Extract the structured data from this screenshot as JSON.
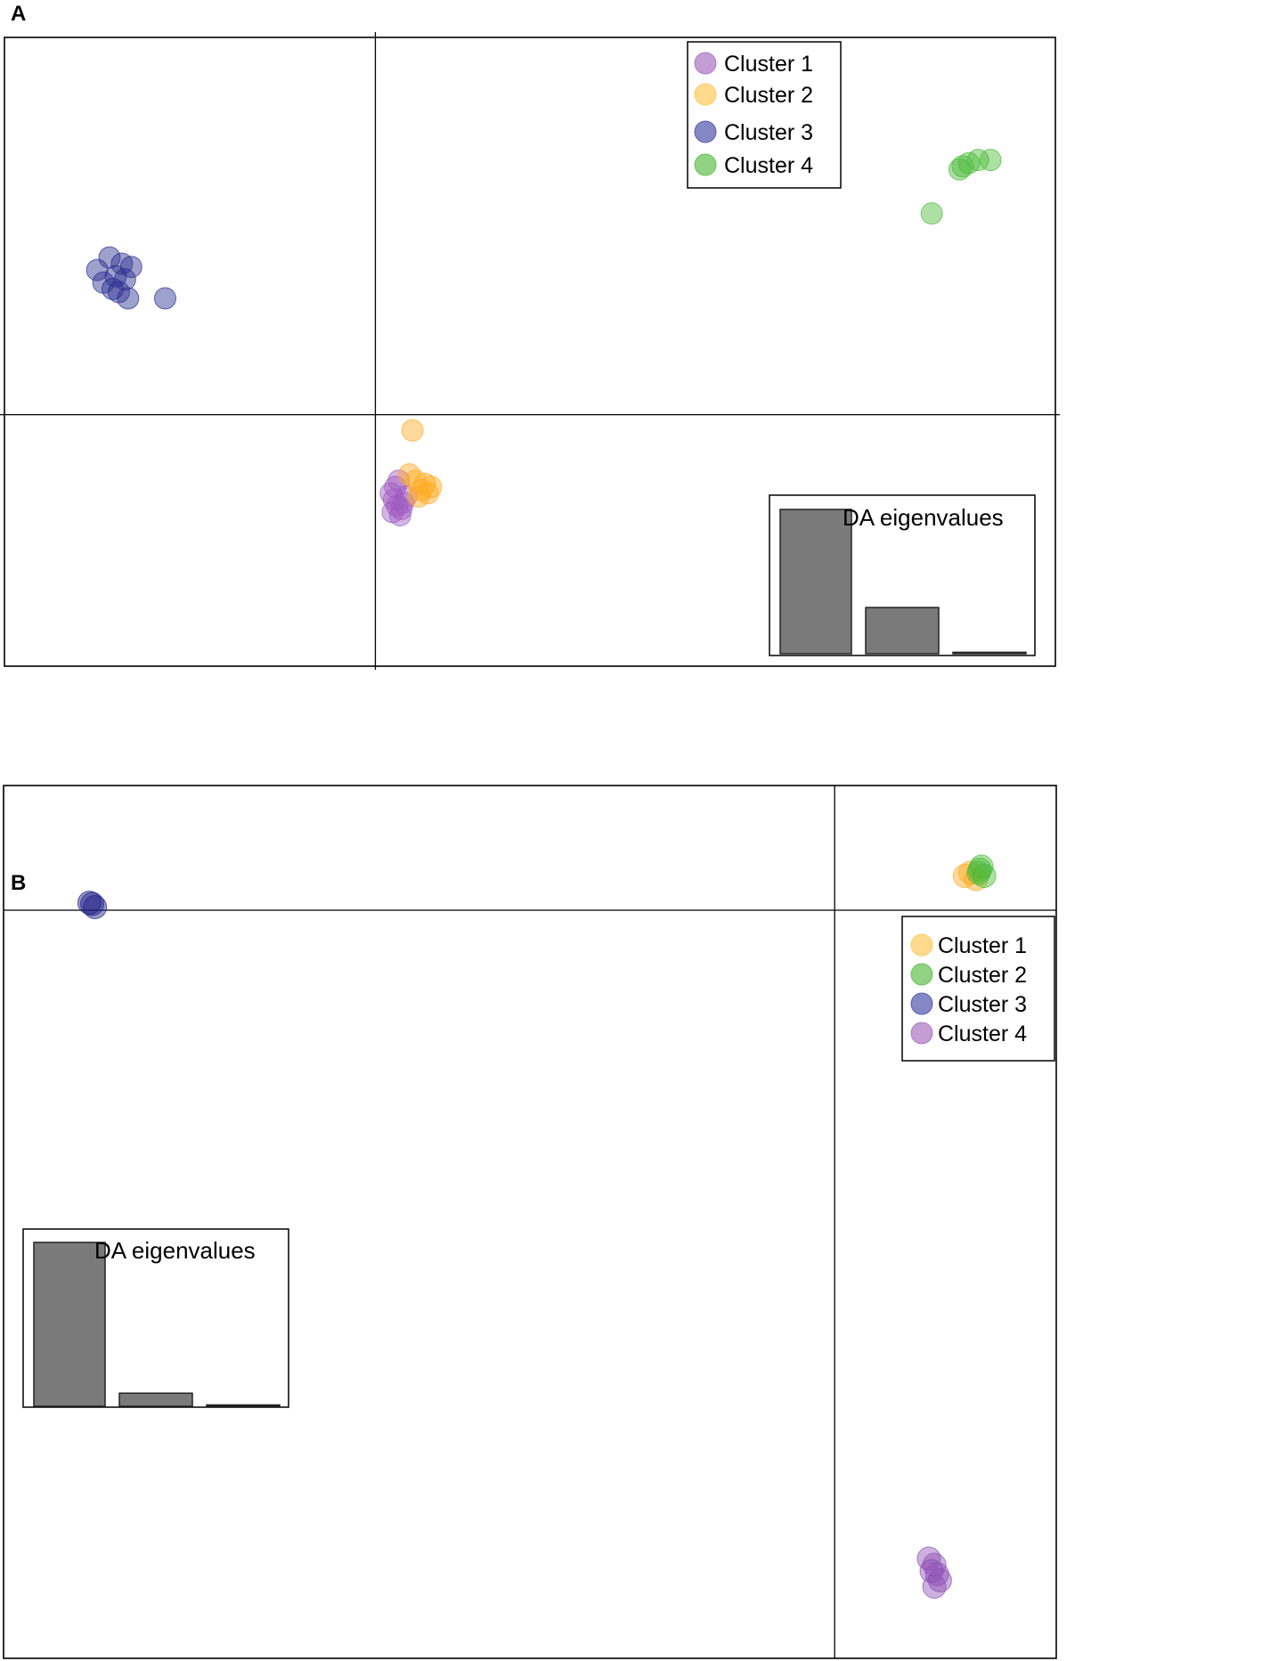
{
  "chart_data": [
    {
      "panel": "A",
      "type": "scatter",
      "title": "",
      "xlabel": "",
      "ylabel": "",
      "xlim": [
        -6,
        11
      ],
      "ylim": [
        -4,
        6
      ],
      "axes_lines": {
        "x0": 0,
        "y0": 0
      },
      "legend": {
        "position": "top-right",
        "entries": [
          {
            "name": "Cluster 1",
            "color": "#b07cc6"
          },
          {
            "name": "Cluster 2",
            "color": "#ffcc66"
          },
          {
            "name": "Cluster 3",
            "color": "#5a5fb0"
          },
          {
            "name": "Cluster 4",
            "color": "#6cc35a"
          }
        ]
      },
      "series": [
        {
          "name": "Cluster 1",
          "color": "#a05cc0",
          "points": [
            [
              0.25,
              -1.25
            ],
            [
              0.3,
              -1.35
            ],
            [
              0.35,
              -1.45
            ],
            [
              0.28,
              -1.55
            ],
            [
              0.4,
              -1.6
            ],
            [
              0.45,
              -1.4
            ],
            [
              0.32,
              -1.15
            ],
            [
              0.38,
              -1.05
            ],
            [
              0.5,
              -1.3
            ],
            [
              0.42,
              -1.5
            ]
          ]
        },
        {
          "name": "Cluster 2",
          "color": "#ffaa22",
          "points": [
            [
              0.6,
              -0.25
            ],
            [
              0.55,
              -0.95
            ],
            [
              0.75,
              -1.2
            ],
            [
              0.85,
              -1.25
            ],
            [
              0.9,
              -1.15
            ],
            [
              0.7,
              -1.3
            ],
            [
              0.8,
              -1.1
            ],
            [
              0.65,
              -1.05
            ]
          ]
        },
        {
          "name": "Cluster 3",
          "color": "#2a2f90",
          "points": [
            [
              -4.5,
              2.3
            ],
            [
              -4.3,
              2.5
            ],
            [
              -4.2,
              2.2
            ],
            [
              -4.1,
              2.4
            ],
            [
              -4.4,
              2.1
            ],
            [
              -4.25,
              2.0
            ],
            [
              -4.05,
              2.15
            ],
            [
              -3.95,
              2.35
            ],
            [
              -4.15,
              1.95
            ],
            [
              -4.0,
              1.85
            ],
            [
              -3.4,
              1.85
            ]
          ]
        },
        {
          "name": "Cluster 4",
          "color": "#4cbb3a",
          "points": [
            [
              9.0,
              3.2
            ],
            [
              9.5,
              3.95
            ],
            [
              9.6,
              4.0
            ],
            [
              9.75,
              4.05
            ],
            [
              9.95,
              4.05
            ],
            [
              9.45,
              3.9
            ]
          ]
        }
      ],
      "eigenvalues": {
        "title": "DA eigenvalues",
        "values": [
          1.0,
          0.32,
          0.01
        ],
        "position": "bottom-right"
      }
    },
    {
      "panel": "B",
      "type": "scatter",
      "title": "",
      "xlabel": "",
      "ylabel": "",
      "xlim": [
        -15,
        4
      ],
      "ylim": [
        -12,
        2
      ],
      "axes_lines": {
        "x0": 0,
        "y0": 0
      },
      "legend": {
        "position": "right",
        "entries": [
          {
            "name": "Cluster 1",
            "color": "#ffcc66"
          },
          {
            "name": "Cluster 2",
            "color": "#6cc35a"
          },
          {
            "name": "Cluster 3",
            "color": "#5a5fb0"
          },
          {
            "name": "Cluster 4",
            "color": "#b07cc6"
          }
        ]
      },
      "series": [
        {
          "name": "Cluster 1",
          "color": "#ffaa22",
          "points": [
            [
              2.35,
              0.55
            ],
            [
              2.45,
              0.6
            ],
            [
              2.55,
              0.5
            ]
          ]
        },
        {
          "name": "Cluster 2",
          "color": "#4cbb3a",
          "points": [
            [
              2.6,
              0.6
            ],
            [
              2.65,
              0.7
            ],
            [
              2.7,
              0.55
            ],
            [
              2.62,
              0.65
            ]
          ]
        },
        {
          "name": "Cluster 3",
          "color": "#1c1f86",
          "points": [
            [
              -13.4,
              0.1
            ],
            [
              -13.35,
              0.05
            ],
            [
              -13.45,
              0.12
            ]
          ]
        },
        {
          "name": "Cluster 4",
          "color": "#8f4fb5",
          "points": [
            [
              1.7,
              -10.4
            ],
            [
              1.8,
              -10.5
            ],
            [
              1.85,
              -10.65
            ],
            [
              1.8,
              -10.85
            ],
            [
              1.9,
              -10.75
            ],
            [
              1.75,
              -10.6
            ]
          ]
        }
      ],
      "eigenvalues": {
        "title": "DA eigenvalues",
        "values": [
          1.0,
          0.08,
          0.005
        ],
        "position": "bottom-left"
      }
    }
  ],
  "panels": {
    "a_label": "A",
    "b_label": "B"
  }
}
